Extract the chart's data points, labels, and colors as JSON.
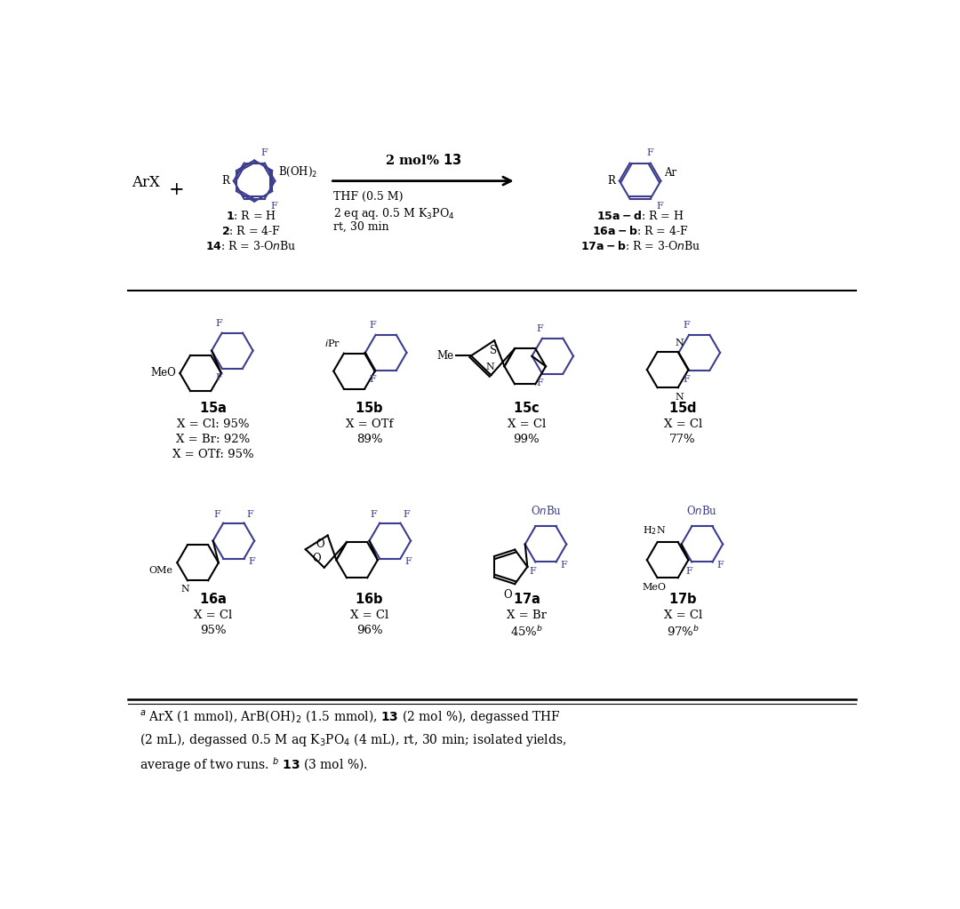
{
  "bg_color": "#ffffff",
  "text_color": "#000000",
  "structure_color": "#3d3d8f",
  "black": "#000000",
  "comp15a_name": "15a",
  "comp15a_data": "X = Cl: 95%\nX = Br: 92%\nX = OTf: 95%",
  "comp15b_name": "15b",
  "comp15b_data": "X = OTf\n89%",
  "comp15c_name": "15c",
  "comp15c_data": "X = Cl\n99%",
  "comp15d_name": "15d",
  "comp15d_data": "X = Cl\n77%",
  "comp16a_name": "16a",
  "comp16a_data": "X = Cl\n95%",
  "comp16b_name": "16b",
  "comp16b_data": "X = Cl\n96%",
  "comp17a_name": "17a",
  "comp17a_data": "X = Br\n45%",
  "comp17b_name": "17b",
  "comp17b_data": "X = Cl\n97%"
}
